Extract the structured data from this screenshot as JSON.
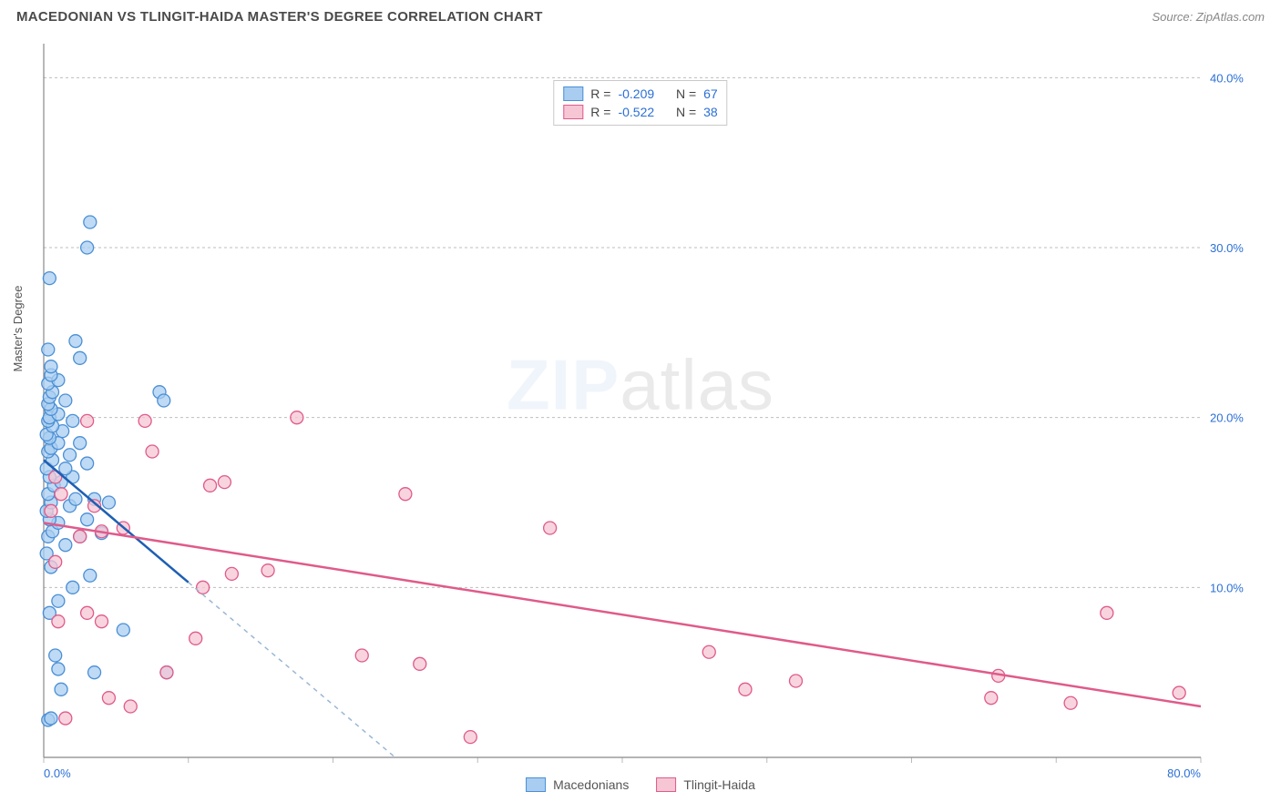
{
  "title": "MACEDONIAN VS TLINGIT-HAIDA MASTER'S DEGREE CORRELATION CHART",
  "source": "Source: ZipAtlas.com",
  "ylabel": "Master's Degree",
  "watermark_a": "ZIP",
  "watermark_b": "atlas",
  "chart": {
    "type": "scatter",
    "xlim": [
      0,
      80
    ],
    "ylim": [
      0,
      42
    ],
    "x_ticks": [
      0,
      10,
      20,
      30,
      40,
      50,
      60,
      70,
      80
    ],
    "x_tick_labels": {
      "0": "0.0%",
      "80": "80.0%"
    },
    "y_gridlines": [
      10,
      20,
      30,
      40
    ],
    "y_tick_labels": {
      "10": "10.0%",
      "20": "20.0%",
      "30": "30.0%",
      "40": "40.0%"
    },
    "background_color": "#ffffff",
    "grid_color": "#bdbdbd",
    "axis_color": "#888888",
    "label_color": "#2b6fd6",
    "series": [
      {
        "key": "macedonians",
        "label": "Macedonians",
        "R": "-0.209",
        "N": "67",
        "marker_fill": "#a9cdf0",
        "marker_stroke": "#4a8fd6",
        "marker_opacity": 0.75,
        "marker_radius": 7,
        "line_color": "#1e5fb3",
        "line_dash_color": "#9ab7d4",
        "trend_solid": [
          [
            0,
            17.5
          ],
          [
            10,
            10.3
          ]
        ],
        "trend_dash": [
          [
            10,
            10.3
          ],
          [
            24.3,
            0
          ]
        ],
        "points": [
          [
            0.3,
            2.2
          ],
          [
            0.5,
            2.3
          ],
          [
            1.2,
            4.0
          ],
          [
            3.5,
            5.0
          ],
          [
            1.0,
            5.2
          ],
          [
            0.8,
            6.0
          ],
          [
            5.5,
            7.5
          ],
          [
            8.5,
            5.0
          ],
          [
            0.4,
            8.5
          ],
          [
            1.0,
            9.2
          ],
          [
            2.0,
            10.0
          ],
          [
            3.2,
            10.7
          ],
          [
            0.5,
            11.2
          ],
          [
            0.2,
            12.0
          ],
          [
            1.5,
            12.5
          ],
          [
            0.3,
            13.0
          ],
          [
            0.6,
            13.3
          ],
          [
            2.5,
            13.0
          ],
          [
            4.0,
            13.2
          ],
          [
            1.0,
            13.8
          ],
          [
            0.4,
            14.0
          ],
          [
            3.0,
            14.0
          ],
          [
            0.2,
            14.5
          ],
          [
            1.8,
            14.8
          ],
          [
            0.5,
            15.0
          ],
          [
            2.2,
            15.2
          ],
          [
            0.3,
            15.5
          ],
          [
            4.5,
            15.0
          ],
          [
            0.7,
            16.0
          ],
          [
            3.5,
            15.2
          ],
          [
            1.2,
            16.2
          ],
          [
            0.4,
            16.5
          ],
          [
            2.0,
            16.5
          ],
          [
            0.2,
            17.0
          ],
          [
            1.5,
            17.0
          ],
          [
            0.6,
            17.5
          ],
          [
            3.0,
            17.3
          ],
          [
            0.3,
            18.0
          ],
          [
            1.8,
            17.8
          ],
          [
            0.5,
            18.2
          ],
          [
            1.0,
            18.5
          ],
          [
            0.4,
            18.8
          ],
          [
            2.5,
            18.5
          ],
          [
            0.2,
            19.0
          ],
          [
            1.3,
            19.2
          ],
          [
            0.6,
            19.5
          ],
          [
            0.3,
            19.8
          ],
          [
            2.0,
            19.8
          ],
          [
            0.4,
            20.0
          ],
          [
            1.0,
            20.2
          ],
          [
            0.5,
            20.5
          ],
          [
            0.3,
            20.8
          ],
          [
            1.5,
            21.0
          ],
          [
            0.4,
            21.2
          ],
          [
            8.0,
            21.5
          ],
          [
            8.3,
            21.0
          ],
          [
            0.6,
            21.5
          ],
          [
            0.3,
            22.0
          ],
          [
            1.0,
            22.2
          ],
          [
            0.5,
            22.5
          ],
          [
            2.5,
            23.5
          ],
          [
            2.2,
            24.5
          ],
          [
            0.4,
            28.2
          ],
          [
            3.0,
            30.0
          ],
          [
            3.2,
            31.5
          ],
          [
            0.5,
            23.0
          ],
          [
            0.3,
            24.0
          ]
        ]
      },
      {
        "key": "tlingit",
        "label": "Tlingit-Haida",
        "R": "-0.522",
        "N": "38",
        "marker_fill": "#f6c6d4",
        "marker_stroke": "#e05a8a",
        "marker_opacity": 0.75,
        "marker_radius": 7,
        "line_color": "#e05a8a",
        "trend_solid": [
          [
            0,
            13.8
          ],
          [
            80,
            3.0
          ]
        ],
        "points": [
          [
            1.5,
            2.3
          ],
          [
            6.0,
            3.0
          ],
          [
            4.5,
            3.5
          ],
          [
            8.5,
            5.0
          ],
          [
            10.5,
            7.0
          ],
          [
            1.0,
            8.0
          ],
          [
            3.0,
            8.5
          ],
          [
            4.0,
            8.0
          ],
          [
            11.0,
            10.0
          ],
          [
            13.0,
            10.8
          ],
          [
            15.5,
            11.0
          ],
          [
            0.8,
            11.5
          ],
          [
            2.5,
            13.0
          ],
          [
            4.0,
            13.3
          ],
          [
            5.5,
            13.5
          ],
          [
            0.5,
            14.5
          ],
          [
            3.5,
            14.8
          ],
          [
            1.2,
            15.5
          ],
          [
            11.5,
            16.0
          ],
          [
            12.5,
            16.2
          ],
          [
            7.5,
            18.0
          ],
          [
            0.8,
            16.5
          ],
          [
            3.0,
            19.8
          ],
          [
            7.0,
            19.8
          ],
          [
            17.5,
            20.0
          ],
          [
            22.0,
            6.0
          ],
          [
            25.0,
            15.5
          ],
          [
            26.0,
            5.5
          ],
          [
            29.5,
            1.2
          ],
          [
            35.0,
            13.5
          ],
          [
            46.0,
            6.2
          ],
          [
            48.5,
            4.0
          ],
          [
            52.0,
            4.5
          ],
          [
            65.5,
            3.5
          ],
          [
            66.0,
            4.8
          ],
          [
            71.0,
            3.2
          ],
          [
            73.5,
            8.5
          ],
          [
            78.5,
            3.8
          ]
        ]
      }
    ]
  },
  "legend_top_prefix_R": "R =",
  "legend_top_prefix_N": "N ="
}
